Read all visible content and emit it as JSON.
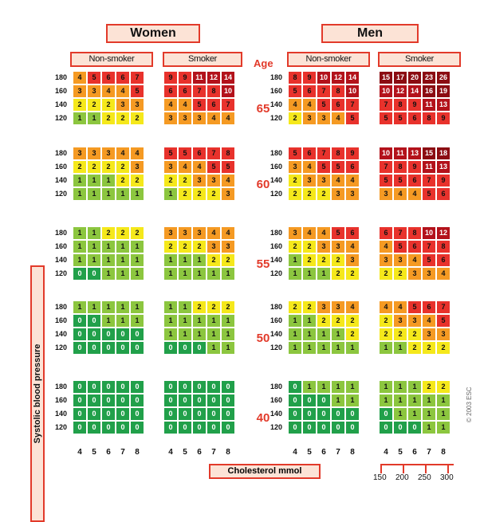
{
  "headers": {
    "women": "Women",
    "men": "Men"
  },
  "subheaders": {
    "non_smoker": "Non-smoker",
    "smoker": "Smoker"
  },
  "age_label": "Age",
  "ages": [
    "65",
    "60",
    "55",
    "50",
    "40"
  ],
  "bp_rows": [
    "180",
    "160",
    "140",
    "120"
  ],
  "chol_cols": [
    "4",
    "5",
    "6",
    "7",
    "8"
  ],
  "y_axis_label": "Systolic blood pressure",
  "x_axis_label": "Cholesterol mmol",
  "mgdl_ticks": [
    "150",
    "200",
    "250",
    "300"
  ],
  "copyright": "© 2003 ESC",
  "colors": {
    "dark_green": "#21a04a",
    "light_green": "#8cc63f",
    "yellow": "#f5e81b",
    "orange": "#f59a23",
    "red": "#e8322c",
    "dark_red": "#b3121b",
    "maroon": "#8b0c12"
  },
  "chart_data": {
    "type": "heatmap",
    "values": {
      "women_nonsmoker": [
        [
          [
            4,
            5,
            6,
            6,
            7
          ],
          [
            3,
            3,
            4,
            4,
            5
          ],
          [
            2,
            2,
            2,
            3,
            3
          ],
          [
            1,
            1,
            2,
            2,
            2
          ]
        ],
        [
          [
            3,
            3,
            3,
            4,
            4
          ],
          [
            2,
            2,
            2,
            2,
            3
          ],
          [
            1,
            1,
            1,
            2,
            2
          ],
          [
            1,
            1,
            1,
            1,
            1
          ]
        ],
        [
          [
            1,
            1,
            2,
            2,
            2
          ],
          [
            1,
            1,
            1,
            1,
            1
          ],
          [
            1,
            1,
            1,
            1,
            1
          ],
          [
            0,
            0,
            1,
            1,
            1
          ]
        ],
        [
          [
            1,
            1,
            1,
            1,
            1
          ],
          [
            0,
            0,
            1,
            1,
            1
          ],
          [
            0,
            0,
            0,
            0,
            0
          ],
          [
            0,
            0,
            0,
            0,
            0
          ]
        ],
        [
          [
            0,
            0,
            0,
            0,
            0
          ],
          [
            0,
            0,
            0,
            0,
            0
          ],
          [
            0,
            0,
            0,
            0,
            0
          ],
          [
            0,
            0,
            0,
            0,
            0
          ]
        ]
      ],
      "women_smoker": [
        [
          [
            9,
            9,
            11,
            12,
            14
          ],
          [
            6,
            6,
            7,
            8,
            10
          ],
          [
            4,
            4,
            5,
            6,
            7
          ],
          [
            3,
            3,
            3,
            4,
            4
          ]
        ],
        [
          [
            5,
            5,
            6,
            7,
            8
          ],
          [
            3,
            4,
            4,
            5,
            5
          ],
          [
            2,
            2,
            3,
            3,
            4
          ],
          [
            1,
            2,
            2,
            2,
            3
          ]
        ],
        [
          [
            3,
            3,
            3,
            4,
            4
          ],
          [
            2,
            2,
            2,
            3,
            3
          ],
          [
            1,
            1,
            1,
            2,
            2
          ],
          [
            1,
            1,
            1,
            1,
            1
          ]
        ],
        [
          [
            1,
            1,
            2,
            2,
            2
          ],
          [
            1,
            1,
            1,
            1,
            1
          ],
          [
            1,
            1,
            1,
            1,
            1
          ],
          [
            0,
            0,
            0,
            1,
            1
          ]
        ],
        [
          [
            0,
            0,
            0,
            0,
            0
          ],
          [
            0,
            0,
            0,
            0,
            0
          ],
          [
            0,
            0,
            0,
            0,
            0
          ],
          [
            0,
            0,
            0,
            0,
            0
          ]
        ]
      ],
      "men_nonsmoker": [
        [
          [
            8,
            9,
            10,
            12,
            14
          ],
          [
            5,
            6,
            7,
            8,
            10
          ],
          [
            4,
            4,
            5,
            6,
            7
          ],
          [
            2,
            3,
            3,
            4,
            5
          ]
        ],
        [
          [
            5,
            6,
            7,
            8,
            9
          ],
          [
            3,
            4,
            5,
            5,
            6
          ],
          [
            2,
            3,
            3,
            4,
            4
          ],
          [
            2,
            2,
            2,
            3,
            3
          ]
        ],
        [
          [
            3,
            4,
            4,
            5,
            6
          ],
          [
            2,
            2,
            3,
            3,
            4
          ],
          [
            1,
            2,
            2,
            2,
            3
          ],
          [
            1,
            1,
            1,
            2,
            2
          ]
        ],
        [
          [
            2,
            2,
            3,
            3,
            4
          ],
          [
            1,
            1,
            2,
            2,
            2
          ],
          [
            1,
            1,
            1,
            1,
            2
          ],
          [
            1,
            1,
            1,
            1,
            1
          ]
        ],
        [
          [
            0,
            1,
            1,
            1,
            1
          ],
          [
            0,
            0,
            0,
            1,
            1
          ],
          [
            0,
            0,
            0,
            0,
            0
          ],
          [
            0,
            0,
            0,
            0,
            0
          ]
        ]
      ],
      "men_smoker": [
        [
          [
            15,
            17,
            20,
            23,
            26
          ],
          [
            10,
            12,
            14,
            16,
            19
          ],
          [
            7,
            8,
            9,
            11,
            13
          ],
          [
            5,
            5,
            6,
            8,
            9
          ]
        ],
        [
          [
            10,
            11,
            13,
            15,
            18
          ],
          [
            7,
            8,
            9,
            11,
            13
          ],
          [
            5,
            5,
            6,
            7,
            9
          ],
          [
            3,
            4,
            4,
            5,
            6
          ]
        ],
        [
          [
            6,
            7,
            8,
            10,
            12
          ],
          [
            4,
            5,
            6,
            7,
            8
          ],
          [
            3,
            3,
            4,
            5,
            6
          ],
          [
            2,
            2,
            3,
            3,
            4
          ]
        ],
        [
          [
            4,
            4,
            5,
            6,
            7
          ],
          [
            2,
            3,
            3,
            4,
            5
          ],
          [
            2,
            2,
            2,
            3,
            3
          ],
          [
            1,
            1,
            2,
            2,
            2
          ]
        ],
        [
          [
            1,
            1,
            1,
            2,
            2
          ],
          [
            1,
            1,
            1,
            1,
            1
          ],
          [
            0,
            1,
            1,
            1,
            1
          ],
          [
            0,
            0,
            0,
            1,
            1
          ]
        ]
      ]
    }
  }
}
